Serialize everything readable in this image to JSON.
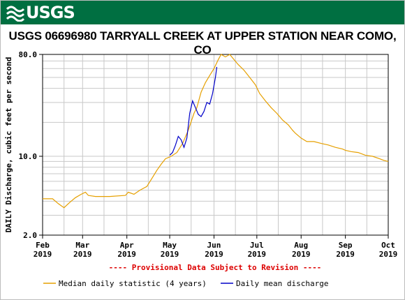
{
  "banner": {
    "logo_text": "USGS",
    "logo_icon": "usgs-wave-icon"
  },
  "colors": {
    "banner": "#006f41",
    "median": "#e6a000",
    "daily": "#0000c8",
    "revision": "#dd0000"
  },
  "chart_data": {
    "type": "line",
    "title": "USGS 06696980 TARRYALL CREEK AT UPPER STATION NEAR COMO, CO",
    "ylabel": "DAILY Discharge, cubic feet per second",
    "xlabel": "",
    "yscale": "log",
    "ylim": [
      2.0,
      80.0
    ],
    "y_tick_labels": [
      "80.0",
      "10.0",
      "2.0"
    ],
    "y_ticks": [
      80.0,
      10.0,
      2.0
    ],
    "xlim": [
      "2019-02-01",
      "2019-10-01"
    ],
    "x_ticks": [
      {
        "date": "2019-02-01",
        "month": "Feb",
        "year": "2019"
      },
      {
        "date": "2019-03-01",
        "month": "Mar",
        "year": "2019"
      },
      {
        "date": "2019-04-01",
        "month": "Apr",
        "year": "2019"
      },
      {
        "date": "2019-05-01",
        "month": "May",
        "year": "2019"
      },
      {
        "date": "2019-06-01",
        "month": "Jun",
        "year": "2019"
      },
      {
        "date": "2019-07-01",
        "month": "Jul",
        "year": "2019"
      },
      {
        "date": "2019-08-01",
        "month": "Aug",
        "year": "2019"
      },
      {
        "date": "2019-09-01",
        "month": "Sep",
        "year": "2019"
      },
      {
        "date": "2019-10-01",
        "month": "Oct",
        "year": "2019"
      }
    ],
    "grid": true,
    "annotation": "---- Provisional Data Subject to Revision ----",
    "legend_placement": "bottom",
    "series": [
      {
        "name": "Median daily statistic (4 years)",
        "color": "#e6a000",
        "points": [
          [
            "2019-02-01",
            4.2
          ],
          [
            "2019-02-08",
            4.2
          ],
          [
            "2019-02-12",
            3.8
          ],
          [
            "2019-02-16",
            3.5
          ],
          [
            "2019-02-20",
            3.9
          ],
          [
            "2019-02-24",
            4.3
          ],
          [
            "2019-02-28",
            4.6
          ],
          [
            "2019-03-03",
            4.8
          ],
          [
            "2019-03-05",
            4.5
          ],
          [
            "2019-03-10",
            4.4
          ],
          [
            "2019-03-20",
            4.4
          ],
          [
            "2019-03-31",
            4.5
          ],
          [
            "2019-04-02",
            4.8
          ],
          [
            "2019-04-06",
            4.6
          ],
          [
            "2019-04-10",
            5.0
          ],
          [
            "2019-04-15",
            5.4
          ],
          [
            "2019-04-19",
            6.5
          ],
          [
            "2019-04-22",
            7.5
          ],
          [
            "2019-04-25",
            8.5
          ],
          [
            "2019-04-28",
            9.5
          ],
          [
            "2019-05-02",
            10.0
          ],
          [
            "2019-05-06",
            10.8
          ],
          [
            "2019-05-10",
            13.0
          ],
          [
            "2019-05-14",
            17.0
          ],
          [
            "2019-05-18",
            24.0
          ],
          [
            "2019-05-20",
            27.0
          ],
          [
            "2019-05-23",
            37.0
          ],
          [
            "2019-05-26",
            45.0
          ],
          [
            "2019-05-29",
            52.0
          ],
          [
            "2019-06-01",
            60.0
          ],
          [
            "2019-06-04",
            72.0
          ],
          [
            "2019-06-06",
            80.0
          ],
          [
            "2019-06-09",
            76.0
          ],
          [
            "2019-06-12",
            80.0
          ],
          [
            "2019-06-15",
            72.0
          ],
          [
            "2019-06-18",
            65.0
          ],
          [
            "2019-06-22",
            58.0
          ],
          [
            "2019-06-26",
            50.0
          ],
          [
            "2019-06-30",
            43.0
          ],
          [
            "2019-07-03",
            36.0
          ],
          [
            "2019-07-07",
            31.0
          ],
          [
            "2019-07-11",
            27.0
          ],
          [
            "2019-07-15",
            24.0
          ],
          [
            "2019-07-19",
            21.0
          ],
          [
            "2019-07-23",
            19.0
          ],
          [
            "2019-07-26",
            17.0
          ],
          [
            "2019-07-28",
            16.0
          ],
          [
            "2019-08-01",
            14.5
          ],
          [
            "2019-08-05",
            13.5
          ],
          [
            "2019-08-10",
            13.5
          ],
          [
            "2019-08-15",
            13.0
          ],
          [
            "2019-08-20",
            12.6
          ],
          [
            "2019-08-25",
            12.0
          ],
          [
            "2019-08-30",
            11.6
          ],
          [
            "2019-09-01",
            11.3
          ],
          [
            "2019-09-05",
            11.0
          ],
          [
            "2019-09-10",
            10.8
          ],
          [
            "2019-09-15",
            10.2
          ],
          [
            "2019-09-20",
            10.0
          ],
          [
            "2019-09-25",
            9.5
          ],
          [
            "2019-09-28",
            9.2
          ],
          [
            "2019-10-01",
            9.0
          ]
        ]
      },
      {
        "name": "Daily mean discharge",
        "color": "#0000c8",
        "points": [
          [
            "2019-05-01",
            10.2
          ],
          [
            "2019-05-03",
            10.8
          ],
          [
            "2019-05-05",
            12.5
          ],
          [
            "2019-05-07",
            15.0
          ],
          [
            "2019-05-09",
            14.0
          ],
          [
            "2019-05-11",
            12.0
          ],
          [
            "2019-05-13",
            14.5
          ],
          [
            "2019-05-15",
            24.0
          ],
          [
            "2019-05-17",
            31.0
          ],
          [
            "2019-05-19",
            27.0
          ],
          [
            "2019-05-21",
            23.5
          ],
          [
            "2019-05-23",
            22.5
          ],
          [
            "2019-05-25",
            25.0
          ],
          [
            "2019-05-27",
            30.0
          ],
          [
            "2019-05-29",
            29.0
          ],
          [
            "2019-05-31",
            36.0
          ],
          [
            "2019-06-02",
            50.0
          ],
          [
            "2019-06-03",
            62.0
          ]
        ]
      }
    ]
  }
}
